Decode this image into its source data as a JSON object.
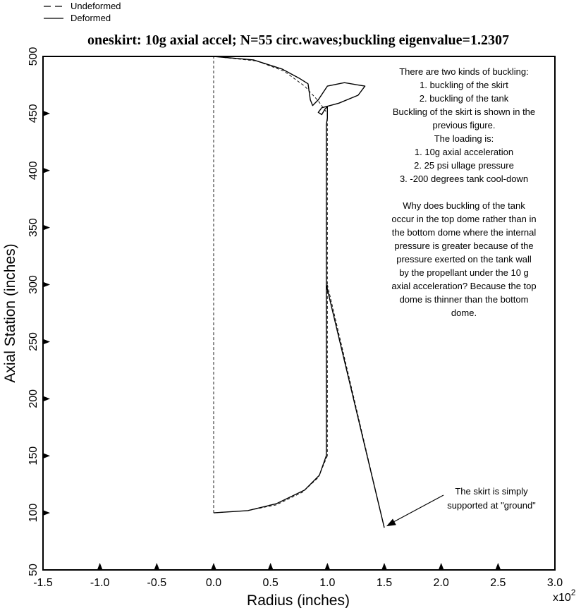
{
  "chart_data": {
    "type": "line",
    "title": "oneskirt: 10g axial accel; N=55 circ.waves;buckling eigenvalue=1.2307",
    "xlabel": "Radius (inches)",
    "ylabel": "Axial Station (inches)",
    "x_multiplier_label": "x10",
    "x_multiplier_exp": "2",
    "xlim": [
      -1.5,
      3.0
    ],
    "ylim": [
      50,
      500
    ],
    "x_ticks": [
      "-1.5",
      "-1.0",
      "-0.5",
      "0.0",
      "0.5",
      "1.0",
      "1.5",
      "2.0",
      "2.5",
      "3.0"
    ],
    "y_ticks": [
      "50",
      "100",
      "150",
      "200",
      "250",
      "300",
      "350",
      "400",
      "450",
      "500"
    ],
    "legend": {
      "placement": "top-left-outside",
      "entries": [
        {
          "label": "Undeformed",
          "style": "dashed"
        },
        {
          "label": "Deformed",
          "style": "solid"
        }
      ]
    },
    "series": [
      {
        "name": "Undeformed",
        "style": "dashed",
        "segments": [
          [
            [
              0.0,
              100
            ],
            [
              0.0,
              500
            ]
          ],
          [
            [
              0.0,
              500
            ],
            [
              0.38,
              496
            ],
            [
              0.62,
              487
            ],
            [
              0.8,
              474
            ],
            [
              0.92,
              461
            ],
            [
              1.0,
              450
            ]
          ],
          [
            [
              1.0,
              450
            ],
            [
              1.0,
              150
            ]
          ],
          [
            [
              1.0,
              150
            ],
            [
              0.92,
              131
            ],
            [
              0.78,
              118
            ],
            [
              0.55,
              107
            ],
            [
              0.3,
              102
            ],
            [
              0.0,
              100
            ]
          ],
          [
            [
              1.0,
              300
            ],
            [
              1.5,
              87
            ]
          ]
        ]
      },
      {
        "name": "Deformed",
        "style": "solid",
        "segments": [
          [
            [
              0.0,
              500
            ],
            [
              0.35,
              497
            ],
            [
              0.6,
              489
            ],
            [
              0.75,
              481
            ],
            [
              0.83,
              476
            ],
            [
              0.85,
              462
            ],
            [
              0.87,
              457
            ],
            [
              0.92,
              462
            ],
            [
              1.0,
              474
            ],
            [
              1.15,
              477
            ],
            [
              1.33,
              474
            ],
            [
              1.27,
              466
            ],
            [
              1.1,
              459
            ],
            [
              0.95,
              455
            ],
            [
              0.92,
              451
            ],
            [
              0.95,
              449
            ],
            [
              0.98,
              454
            ],
            [
              1.0,
              456
            ],
            [
              1.0,
              446
            ],
            [
              0.99,
              440
            ],
            [
              0.99,
              300
            ],
            [
              0.99,
              150
            ],
            [
              0.93,
              133
            ],
            [
              0.8,
              120
            ],
            [
              0.55,
              108
            ],
            [
              0.3,
              102
            ],
            [
              0.0,
              100
            ]
          ],
          [
            [
              0.99,
              300
            ],
            [
              1.5,
              87
            ]
          ]
        ]
      }
    ],
    "support_markers_x": [
      -1.0,
      -0.5,
      0.0,
      0.5,
      1.0,
      1.5,
      2.0,
      2.5
    ],
    "support_markers_y": [
      100,
      150,
      200,
      250,
      300,
      350,
      400,
      450
    ],
    "annotations": {
      "buckling_note": [
        "There are two kinds of buckling:",
        "1. buckling of the skirt",
        "2. buckling of the tank",
        "Buckling of the skirt is shown in the",
        "previous figure.",
        "The loading is:",
        "1. 10g axial acceleration",
        "2.  25 psi ullage pressure",
        "3. -200 degrees tank cool-down",
        "",
        "Why does buckling of the tank",
        "occur in the top dome rather than in",
        "the bottom dome where the internal",
        "pressure is greater because of the",
        "pressure exerted on the tank wall",
        "by the propellant under the 10 g",
        "axial acceleration? Because the top",
        "dome is thinner than the bottom",
        "dome."
      ],
      "support_note": [
        "The skirt is simply",
        "supported at \"ground\""
      ],
      "support_arrow_target": [
        1.5,
        87
      ]
    }
  }
}
